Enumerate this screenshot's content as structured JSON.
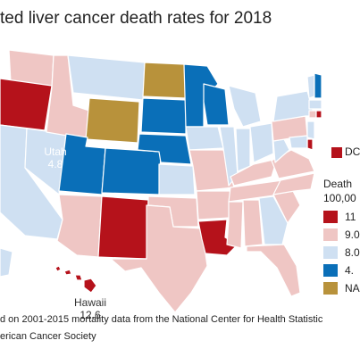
{
  "title": "ted liver cancer death rates for 2018",
  "colors": {
    "high": "#b5121b",
    "mid_high": "#efc6c4",
    "mid_low": "#cfe0f2",
    "low": "#0a6fb8",
    "na": "#b8923b"
  },
  "labels": {
    "utah_name": "Utah",
    "utah_value": "4.8",
    "hawaii_name": "Hawaii",
    "hawaii_value": "12.6",
    "dc": "DC"
  },
  "legend": {
    "title_line1": "Death",
    "title_line2": "100,00",
    "items": [
      {
        "label": "11",
        "color": "#b5121b"
      },
      {
        "label": "9.0",
        "color": "#efc6c4"
      },
      {
        "label": "8.0",
        "color": "#cfe0f2"
      },
      {
        "label": "4.",
        "color": "#0a6fb8"
      },
      {
        "label": "NA",
        "color": "#b8923b"
      }
    ]
  },
  "footnotes": {
    "line1": "d on 2001-2015 mortality data from the National Center for Health Statistic",
    "line2": "erican Cancer Society"
  }
}
